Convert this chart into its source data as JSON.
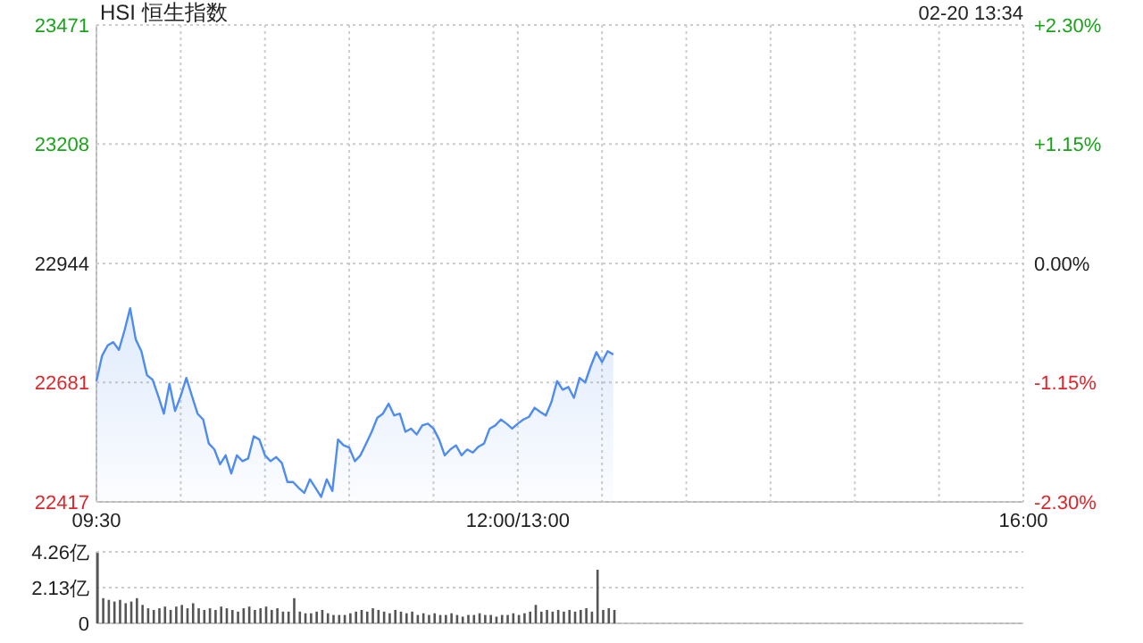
{
  "chart_data": [
    {
      "type": "area",
      "title": "HSI 恒生指数",
      "annotations": [
        "02-20 13:34"
      ],
      "color": "#4e8cf0",
      "grid": true,
      "categories": [
        "09:30",
        null,
        null,
        null,
        null,
        null,
        null,
        null,
        null,
        null,
        null,
        null,
        null,
        null,
        null,
        null,
        null,
        null,
        null,
        null,
        null,
        null,
        null,
        null,
        null,
        null,
        null,
        null,
        null,
        null,
        null,
        null,
        null,
        null,
        null,
        null,
        null,
        null,
        null,
        null,
        null,
        null,
        null,
        null,
        null,
        null,
        null,
        null,
        null,
        null,
        null,
        null,
        null,
        null,
        null,
        null,
        null,
        null,
        null,
        null,
        null,
        null,
        null,
        null,
        null,
        null,
        null,
        null,
        null,
        null,
        null,
        null,
        null,
        null,
        null,
        "12:00/13:00",
        null,
        null,
        null,
        null,
        null,
        null,
        null,
        null,
        null,
        null,
        null,
        null,
        null,
        null,
        null,
        null,
        null,
        null,
        null,
        null,
        null,
        null,
        null,
        null,
        null,
        null,
        null,
        null,
        null,
        null,
        null,
        null,
        null,
        null,
        null,
        null,
        null,
        null,
        null,
        null,
        null,
        null,
        null,
        null,
        null,
        null,
        null,
        null,
        null,
        null,
        null,
        null,
        null,
        null,
        null,
        null,
        null,
        null,
        null,
        null,
        null,
        null,
        null,
        null,
        null,
        null,
        null,
        null,
        null,
        null,
        null,
        null,
        null,
        null,
        null,
        null,
        null,
        null,
        null,
        null,
        null,
        null,
        null,
        null,
        null,
        null,
        null,
        null,
        null,
        "16:00"
      ],
      "ylim": [
        22417,
        23471
      ],
      "yticks": [
        22417,
        22681,
        22944,
        23208,
        23471
      ],
      "y2lim": [
        -2.3,
        2.3
      ],
      "y2ticks": [
        {
          "value": -2.3,
          "label": "-2.30%"
        },
        {
          "value": -1.15,
          "label": "-1.15%"
        },
        {
          "value": 0,
          "label": "0.00%"
        },
        {
          "value": 1.15,
          "label": "+1.15%"
        },
        {
          "value": 2.3,
          "label": "+2.30%"
        }
      ],
      "values": [
        22684,
        22740,
        22763,
        22770,
        22753,
        22796,
        22845,
        22776,
        22750,
        22697,
        22687,
        22651,
        22612,
        22678,
        22618,
        22651,
        22691,
        22651,
        22612,
        22599,
        22546,
        22533,
        22500,
        22520,
        22480,
        22520,
        22507,
        22513,
        22562,
        22555,
        22520,
        22507,
        22516,
        22503,
        22461,
        22461,
        22448,
        22437,
        22467,
        22448,
        22428,
        22467,
        22441,
        22555,
        22542,
        22537,
        22507,
        22520,
        22546,
        22572,
        22603,
        22612,
        22634,
        22608,
        22612,
        22572,
        22579,
        22566,
        22586,
        22590,
        22579,
        22555,
        22520,
        22533,
        22542,
        22520,
        22533,
        22526,
        22539,
        22546,
        22579,
        22586,
        22599,
        22590,
        22579,
        22590,
        22599,
        22605,
        22625,
        22616,
        22608,
        22638,
        22684,
        22665,
        22671,
        22647,
        22691,
        22681,
        22717,
        22748,
        22726,
        22750,
        22743,
        null,
        null,
        null,
        null,
        null,
        null,
        null,
        null,
        null,
        null,
        null,
        null,
        null,
        null,
        null,
        null,
        null,
        null,
        null,
        null,
        null,
        null,
        null,
        null,
        null,
        null,
        null,
        null,
        null,
        null,
        null,
        null,
        null,
        null,
        null,
        null,
        null,
        null,
        null,
        null,
        null,
        null,
        null,
        null,
        null,
        null,
        null,
        null,
        null,
        null,
        null,
        null,
        null,
        null,
        null,
        null,
        null,
        null,
        null,
        null,
        null,
        null,
        null,
        null,
        null,
        null,
        null,
        null,
        null,
        null,
        null,
        null,
        null
      ]
    },
    {
      "type": "bar",
      "color": "#555555",
      "grid": "y",
      "tick_labels": "y",
      "categories": [
        null,
        null,
        null,
        null,
        null,
        null,
        null,
        null,
        null,
        null,
        null,
        null,
        null,
        null,
        null,
        null,
        null,
        null,
        null,
        null,
        null,
        null,
        null,
        null,
        null,
        null,
        null,
        null,
        null,
        null,
        null,
        null,
        null,
        null,
        null,
        null,
        null,
        null,
        null,
        null,
        null,
        null,
        null,
        null,
        null,
        null,
        null,
        null,
        null,
        null,
        null,
        null,
        null,
        null,
        null,
        null,
        null,
        null,
        null,
        null,
        null,
        null,
        null,
        null,
        null,
        null,
        null,
        null,
        null,
        null,
        null,
        null,
        null,
        null,
        null,
        null,
        null,
        null,
        null,
        null,
        null,
        null,
        null,
        null,
        null,
        null,
        null,
        null,
        null,
        null,
        null,
        null,
        null,
        null,
        null,
        null,
        null,
        null,
        null,
        null,
        null,
        null,
        null,
        null,
        null,
        null,
        null,
        null,
        null,
        null,
        null,
        null,
        null,
        null,
        null,
        null,
        null,
        null,
        null,
        null,
        null,
        null,
        null,
        null,
        null,
        null,
        null,
        null,
        null,
        null,
        null,
        null,
        null,
        null,
        null,
        null,
        null,
        null,
        null,
        null,
        null,
        null,
        null,
        null,
        null,
        null,
        null,
        null,
        null,
        null,
        null,
        null,
        null,
        null,
        null,
        null,
        null,
        null,
        null,
        null,
        null,
        null,
        null,
        null,
        null,
        null
      ],
      "ylim": [
        0,
        4.26
      ],
      "yticks": [
        0,
        {
          "value": 2.13,
          "label": "2.13亿"
        },
        {
          "value": 4.26,
          "label": "4.26亿"
        }
      ],
      "values": [
        4.2,
        1.5,
        1.4,
        1.3,
        1.4,
        1.2,
        1.3,
        1.5,
        1.1,
        0.9,
        0.8,
        0.9,
        1.0,
        0.8,
        1.0,
        1.1,
        0.9,
        1.2,
        0.9,
        0.8,
        0.9,
        0.8,
        1.0,
        0.9,
        0.8,
        0.7,
        0.9,
        1.0,
        0.8,
        0.9,
        1.0,
        0.8,
        0.9,
        0.7,
        0.7,
        1.5,
        0.7,
        0.6,
        0.6,
        0.7,
        0.8,
        0.6,
        0.5,
        0.5,
        0.5,
        0.6,
        0.7,
        0.8,
        0.7,
        0.9,
        0.8,
        0.7,
        0.6,
        0.8,
        0.7,
        0.6,
        0.7,
        0.5,
        0.6,
        0.5,
        0.6,
        0.5,
        0.5,
        0.6,
        0.5,
        0.4,
        0.5,
        0.5,
        0.6,
        0.5,
        0.5,
        0.4,
        0.5,
        0.5,
        0.6,
        0.5,
        0.6,
        0.7,
        1.1,
        0.7,
        0.8,
        0.7,
        0.8,
        0.7,
        0.8,
        0.7,
        0.8,
        0.9,
        0.7,
        3.2,
        0.8,
        0.9,
        0.8,
        null,
        null,
        null,
        null,
        null,
        null,
        null,
        null,
        null,
        null,
        null,
        null,
        null,
        null,
        null,
        null,
        null,
        null,
        null,
        null,
        null,
        null,
        null,
        null,
        null,
        null,
        null,
        null,
        null,
        null,
        null,
        null,
        null,
        null,
        null,
        null,
        null,
        null,
        null,
        null,
        null,
        null,
        null,
        null,
        null,
        null,
        null,
        null,
        null,
        null,
        null,
        null,
        null,
        null,
        null,
        null,
        null,
        null,
        null,
        null,
        null,
        null,
        null,
        null,
        null,
        null,
        null,
        null,
        null,
        null,
        null,
        null,
        null
      ]
    }
  ]
}
